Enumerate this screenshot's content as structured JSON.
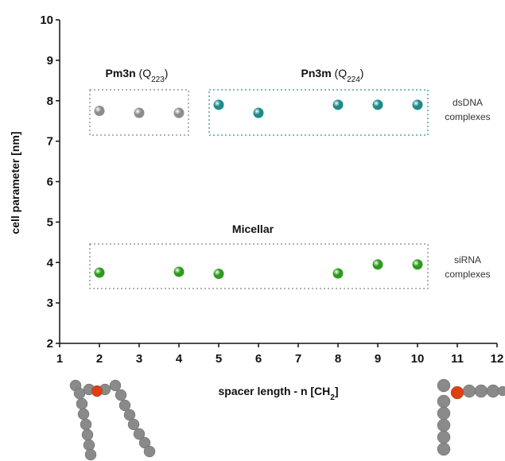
{
  "chart_data": {
    "type": "scatter",
    "xlabel": {
      "text": "spacer length - n [CH",
      "sub": "2",
      "tail": "]"
    },
    "ylabel": "cell parameter  [nm]",
    "xlim": [
      1,
      12
    ],
    "xticks": [
      1,
      2,
      3,
      4,
      5,
      6,
      7,
      8,
      9,
      10,
      11,
      12
    ],
    "ylim": [
      2,
      10
    ],
    "yticks": [
      2,
      3,
      4,
      5,
      6,
      7,
      8,
      9,
      10
    ],
    "series": [
      {
        "color": "#8c8c8c",
        "x": [
          2,
          3,
          4
        ],
        "values": [
          7.75,
          7.7,
          7.7
        ]
      },
      {
        "color": "#1e8a8a",
        "x": [
          5,
          6,
          8,
          9,
          10
        ],
        "values": [
          7.9,
          7.7,
          7.9,
          7.9,
          7.9
        ]
      },
      {
        "color": "#2e9a1e",
        "x": [
          2,
          4,
          5,
          8,
          9,
          10
        ],
        "values": [
          3.75,
          3.77,
          3.72,
          3.73,
          3.95,
          3.95
        ]
      }
    ],
    "annotations": [
      {
        "text": "Pm3n",
        "mid": " (Q",
        "sub": "223",
        "tail": ")"
      },
      {
        "text": "Pn3m",
        "mid": " (Q",
        "sub": "224",
        "tail": ")"
      },
      {
        "text": "Micellar"
      },
      {
        "lines": [
          "dsDNA",
          "complexes"
        ]
      },
      {
        "lines": [
          "siRNA",
          "complexes"
        ]
      }
    ]
  }
}
